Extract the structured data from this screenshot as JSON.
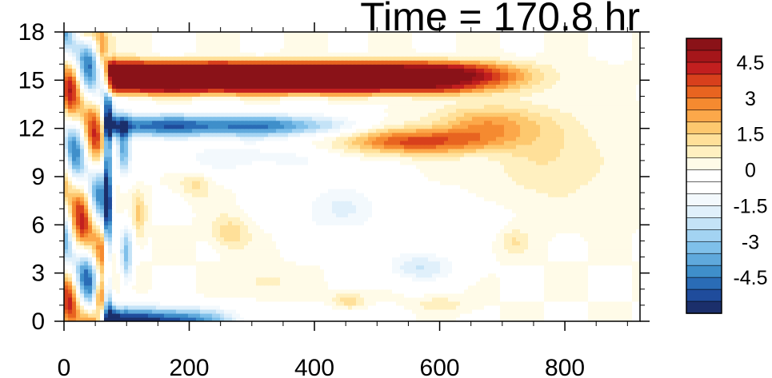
{
  "chart_data": {
    "type": "heatmap",
    "title": "Time = 170.8 hr",
    "xlabel": "",
    "ylabel": "",
    "xlim": [
      0,
      920
    ],
    "ylim": [
      0,
      18
    ],
    "x_ticks": [
      "0",
      "200",
      "400",
      "600",
      "800"
    ],
    "y_ticks": [
      "0",
      "3",
      "6",
      "9",
      "12",
      "15",
      "18"
    ],
    "colorbar": {
      "levels": [
        -5.5,
        -5,
        -4.5,
        -4,
        -3.5,
        -3,
        -2.5,
        -2,
        -1.5,
        -1,
        -0.5,
        0,
        0.5,
        1,
        1.5,
        2,
        2.5,
        3,
        3.5,
        4,
        4.5,
        5,
        5.5
      ],
      "labels": [
        "4.5",
        "3",
        "1.5",
        "0",
        "-1.5",
        "-3",
        "-4.5"
      ],
      "label_values": [
        4.5,
        3,
        1.5,
        0,
        -1.5,
        -3,
        -4.5
      ],
      "colors": [
        "#1b2f6b",
        "#1f4c9c",
        "#2a6cb6",
        "#3f8fca",
        "#5fa9dc",
        "#7fc0ea",
        "#a3d3f2",
        "#c4e3f7",
        "#e0f0fb",
        "#f3f9fd",
        "#ffffff",
        "#ffffff",
        "#fffbe8",
        "#fff0c0",
        "#ffe099",
        "#fdc86e",
        "#fca84a",
        "#f58a30",
        "#e86420",
        "#d8401c",
        "#c21f1f",
        "#a5161a",
        "#8a1218"
      ]
    },
    "features": [
      {
        "name": "upper-positive-band",
        "x": [
          65,
          800
        ],
        "y_center": 15.2,
        "peak": 6.0
      },
      {
        "name": "secondary-positive-band",
        "x": [
          420,
          760
        ],
        "y_center": 11.5,
        "peak": 3.5
      },
      {
        "name": "negative-band-below-upper",
        "x": [
          80,
          520
        ],
        "y_center": 12.3,
        "peak": -5.0
      },
      {
        "name": "surface-negative-band",
        "x": [
          65,
          310
        ],
        "y_center": 0.7,
        "peak": -6.0
      },
      {
        "name": "left-oscillation-zone",
        "x": [
          0,
          110
        ],
        "y": [
          0,
          18
        ]
      }
    ]
  }
}
